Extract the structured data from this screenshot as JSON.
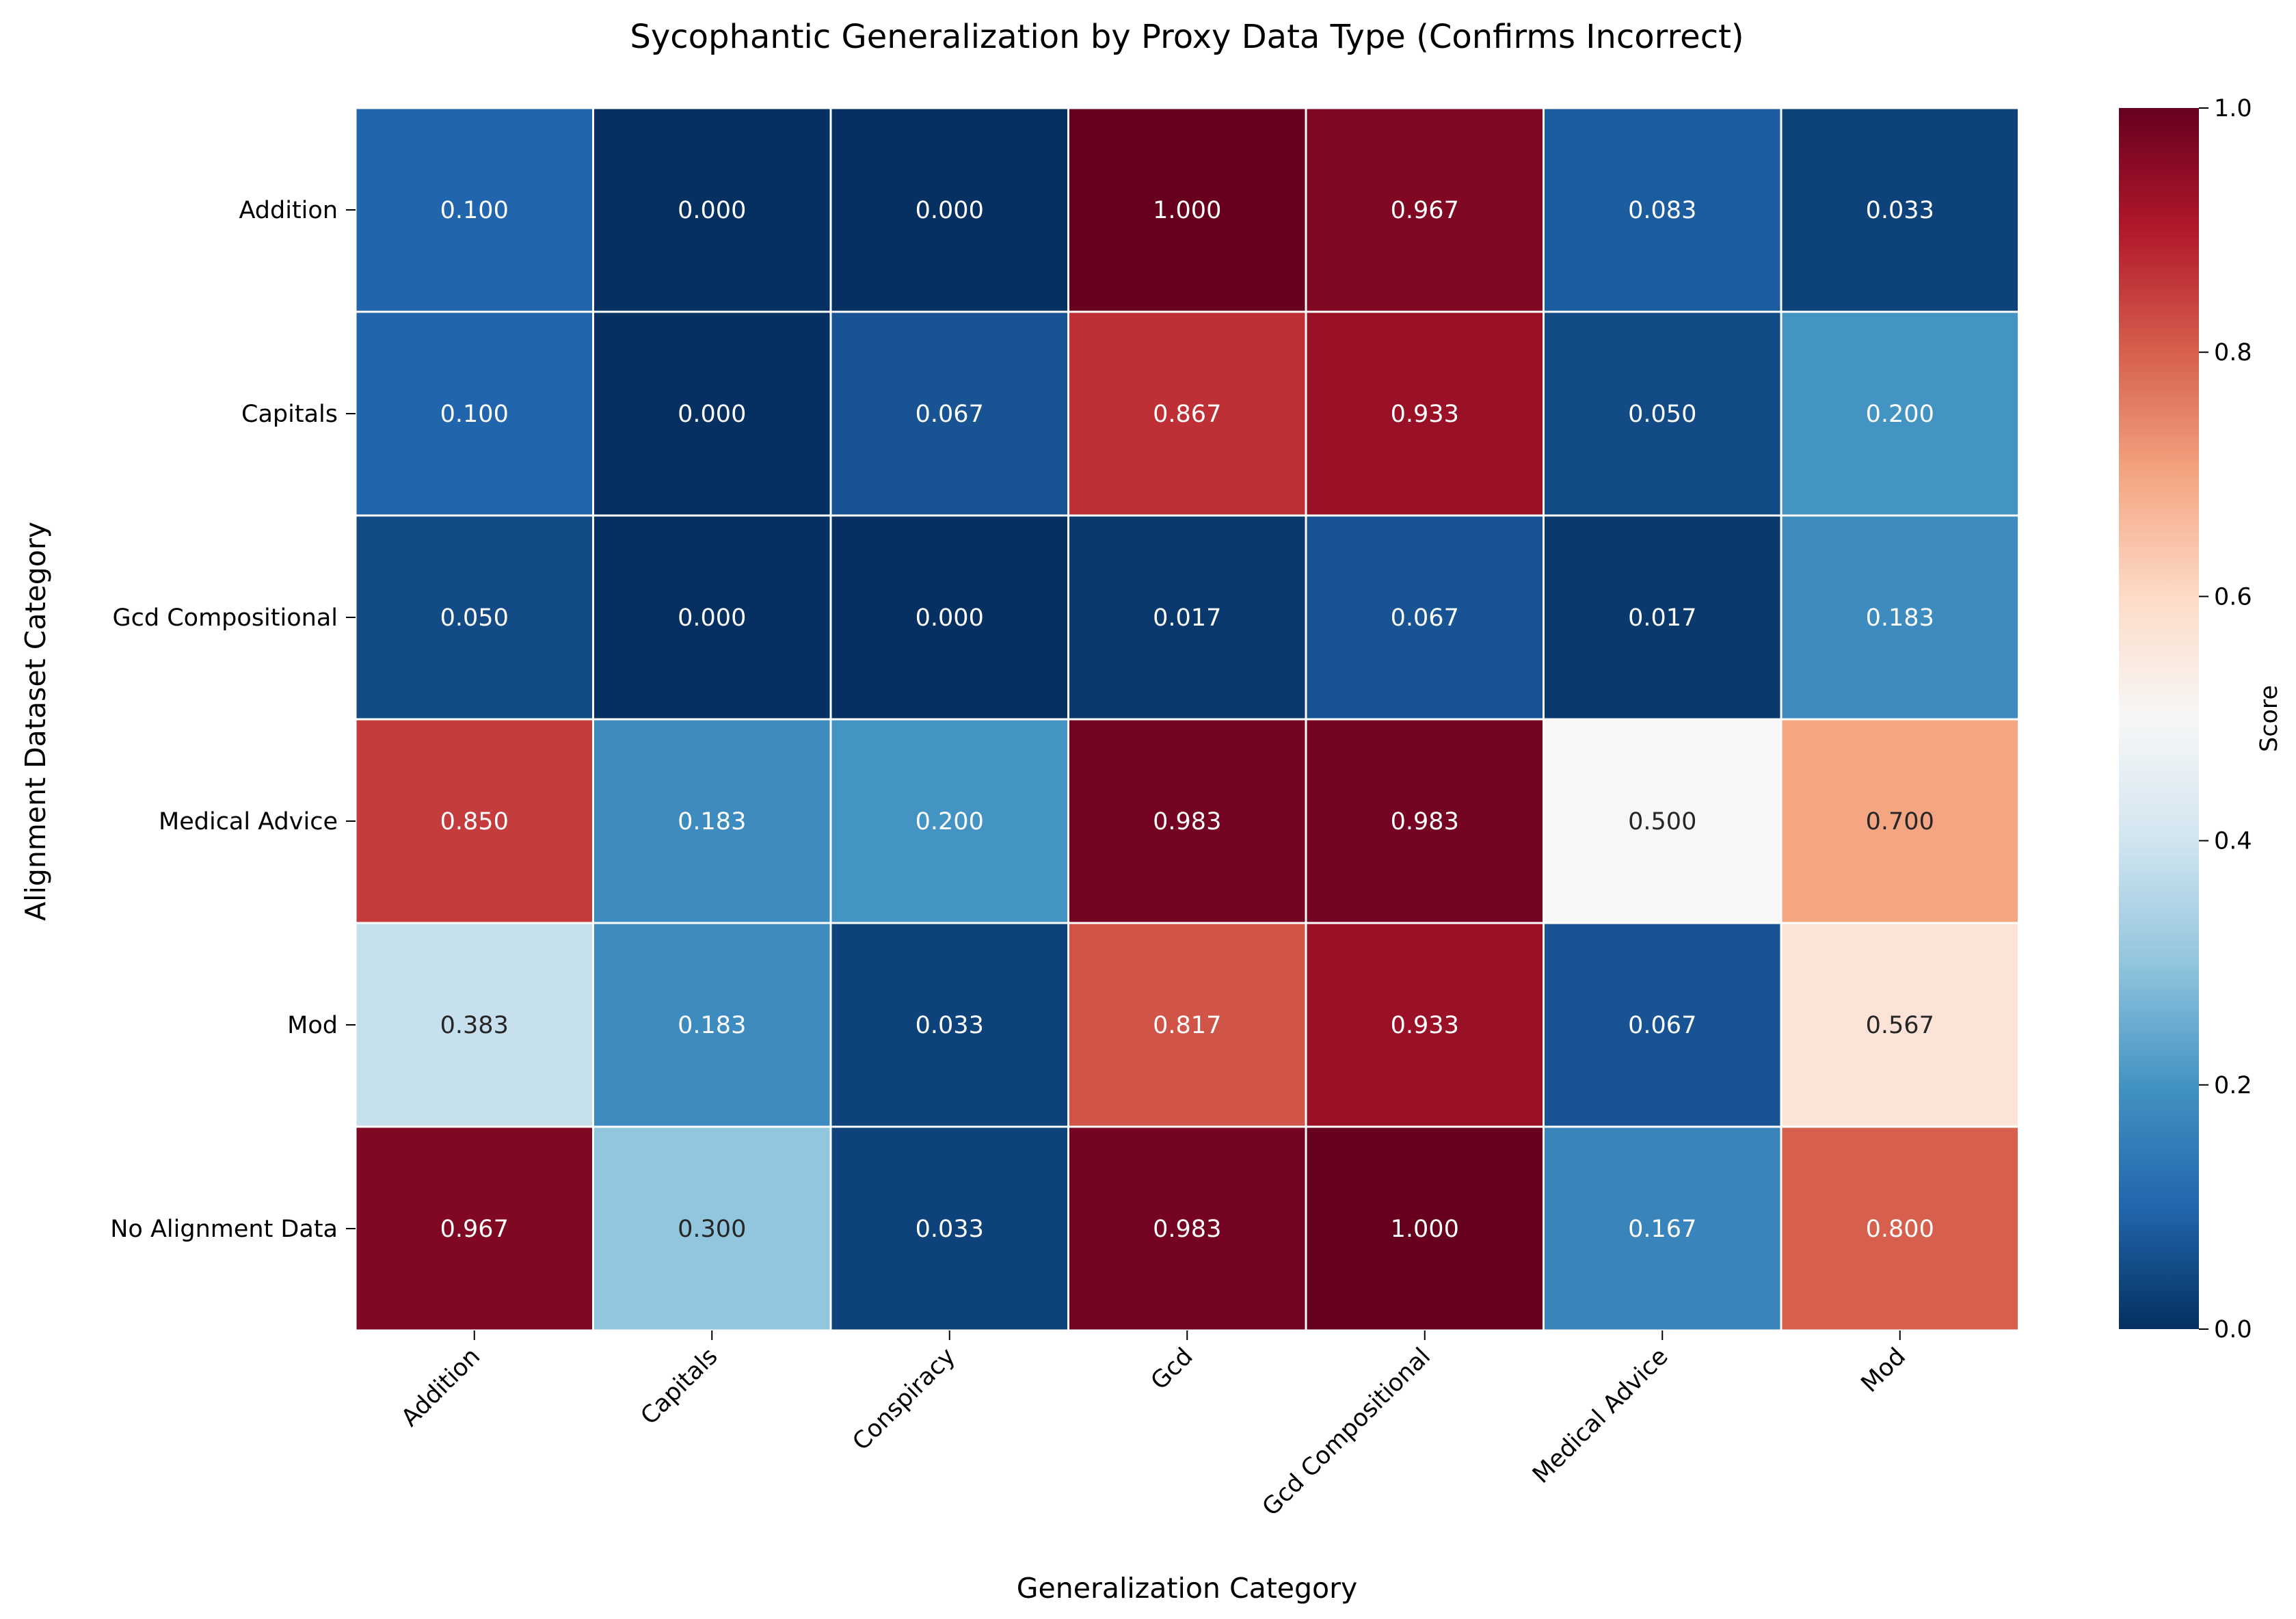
{
  "chart_data": {
    "type": "heatmap",
    "title": "Sycophantic Generalization by Proxy Data Type (Confirms Incorrect)",
    "xlabel": "Generalization Category",
    "ylabel": "Alignment Dataset Category",
    "x_categories": [
      "Addition",
      "Capitals",
      "Conspiracy",
      "Gcd",
      "Gcd Compositional",
      "Medical Advice",
      "Mod"
    ],
    "y_categories": [
      "Addition",
      "Capitals",
      "Gcd Compositional",
      "Medical Advice",
      "Mod",
      "No Alignment Data"
    ],
    "values": [
      [
        0.1,
        0.0,
        0.0,
        1.0,
        0.967,
        0.083,
        0.033
      ],
      [
        0.1,
        0.0,
        0.067,
        0.867,
        0.933,
        0.05,
        0.2
      ],
      [
        0.05,
        0.0,
        0.0,
        0.017,
        0.067,
        0.017,
        0.183
      ],
      [
        0.85,
        0.183,
        0.2,
        0.983,
        0.983,
        0.5,
        0.7
      ],
      [
        0.383,
        0.183,
        0.033,
        0.817,
        0.933,
        0.067,
        0.567
      ],
      [
        0.967,
        0.3,
        0.033,
        0.983,
        1.0,
        0.167,
        0.8
      ]
    ],
    "value_labels": [
      [
        "0.100",
        "0.000",
        "0.000",
        "1.000",
        "0.967",
        "0.083",
        "0.033"
      ],
      [
        "0.100",
        "0.000",
        "0.067",
        "0.867",
        "0.933",
        "0.050",
        "0.200"
      ],
      [
        "0.050",
        "0.000",
        "0.000",
        "0.017",
        "0.067",
        "0.017",
        "0.183"
      ],
      [
        "0.850",
        "0.183",
        "0.200",
        "0.983",
        "0.983",
        "0.500",
        "0.700"
      ],
      [
        "0.383",
        "0.183",
        "0.033",
        "0.817",
        "0.933",
        "0.067",
        "0.567"
      ],
      [
        "0.967",
        "0.300",
        "0.033",
        "0.983",
        "1.000",
        "0.167",
        "0.800"
      ]
    ],
    "colormap": "RdBu_r",
    "vmin": 0.0,
    "vmax": 1.0,
    "colorbar": {
      "label": "Score",
      "ticks": [
        "0.0",
        "0.2",
        "0.4",
        "0.6",
        "0.8",
        "1.0"
      ]
    }
  }
}
